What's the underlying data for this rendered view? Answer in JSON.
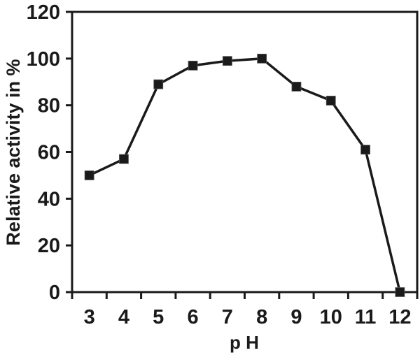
{
  "figure": {
    "background_color": "#ffffff",
    "ink_color": "#1a1a1a"
  },
  "chart_data": {
    "type": "line",
    "title": "",
    "xlabel": "p H",
    "ylabel": "Relative activity in %",
    "x": [
      3,
      4,
      5,
      6,
      7,
      8,
      9,
      10,
      11,
      12
    ],
    "series": [
      {
        "name": "relative-activity",
        "values": [
          50,
          57,
          89,
          97,
          99,
          100,
          88,
          82,
          61,
          0
        ],
        "color": "#1a1a1a",
        "marker": "square"
      }
    ],
    "xlim": [
      2.5,
      12.5
    ],
    "ylim": [
      0,
      120
    ],
    "yticks": [
      0,
      20,
      40,
      60,
      80,
      100,
      120
    ],
    "xtick_positions": [
      2.5,
      3.5,
      4.5,
      5.5,
      6.5,
      7.5,
      8.5,
      9.5,
      10.5,
      11.5,
      12.5
    ],
    "xtick_labels": [
      "3",
      "4",
      "5",
      "6",
      "7",
      "8",
      "9",
      "10",
      "11",
      "12"
    ],
    "grid": false,
    "legend": "none"
  }
}
